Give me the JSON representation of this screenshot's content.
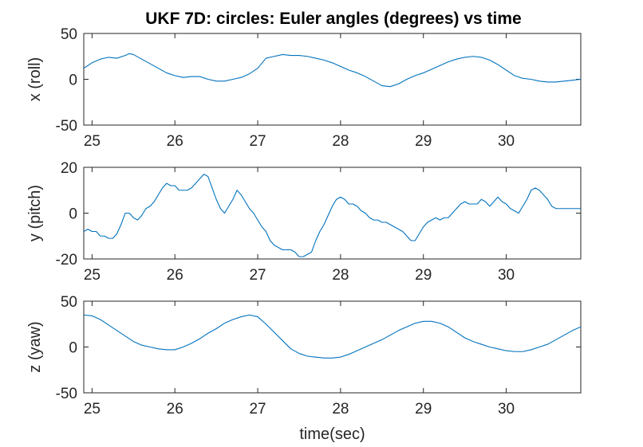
{
  "title": "UKF 7D: circles: Euler angles (degrees) vs time",
  "colors": {
    "series": "#0072BD",
    "axes": "#262626",
    "background": "#ffffff"
  },
  "chart_data": [
    {
      "type": "line",
      "ylabel": "x (roll)",
      "xlabel": "",
      "xlim": [
        24.9,
        30.9
      ],
      "ylim": [
        -50,
        50
      ],
      "xticks": [
        25,
        26,
        27,
        28,
        29,
        30
      ],
      "yticks": [
        -50,
        0,
        50
      ],
      "grid": false,
      "series": [
        {
          "x": [
            24.9,
            25.0,
            25.1,
            25.2,
            25.3,
            25.4,
            25.45,
            25.5,
            25.6,
            25.7,
            25.8,
            25.9,
            26.0,
            26.1,
            26.2,
            26.3,
            26.4,
            26.5,
            26.6,
            26.7,
            26.8,
            26.9,
            27.0,
            27.1,
            27.2,
            27.3,
            27.4,
            27.5,
            27.6,
            27.7,
            27.8,
            27.9,
            28.0,
            28.1,
            28.2,
            28.3,
            28.4,
            28.5,
            28.6,
            28.7,
            28.8,
            28.9,
            29.0,
            29.1,
            29.2,
            29.3,
            29.4,
            29.5,
            29.6,
            29.7,
            29.8,
            29.9,
            30.0,
            30.1,
            30.2,
            30.3,
            30.4,
            30.5,
            30.6,
            30.7,
            30.8,
            30.9
          ],
          "y": [
            12,
            18,
            22,
            24,
            23,
            26,
            28,
            27,
            22,
            17,
            12,
            7,
            4,
            2,
            3,
            3,
            0,
            -2,
            -2,
            0,
            2,
            6,
            12,
            23,
            25,
            27,
            26,
            26,
            25,
            23,
            21,
            18,
            14,
            10,
            7,
            3,
            -2,
            -7,
            -8,
            -5,
            0,
            4,
            7,
            11,
            15,
            19,
            22,
            24,
            25,
            24,
            21,
            16,
            10,
            4,
            1,
            0,
            -2,
            -3,
            -3,
            -2,
            -1,
            0
          ]
        }
      ]
    },
    {
      "type": "line",
      "ylabel": "y (pitch)",
      "xlabel": "",
      "xlim": [
        24.9,
        30.9
      ],
      "ylim": [
        -20,
        20
      ],
      "xticks": [
        25,
        26,
        27,
        28,
        29,
        30
      ],
      "yticks": [
        -20,
        0,
        20
      ],
      "grid": false,
      "series": [
        {
          "x": [
            24.9,
            24.95,
            25.0,
            25.05,
            25.1,
            25.15,
            25.2,
            25.25,
            25.3,
            25.35,
            25.4,
            25.45,
            25.5,
            25.55,
            25.6,
            25.65,
            25.7,
            25.75,
            25.8,
            25.85,
            25.9,
            25.95,
            26.0,
            26.05,
            26.1,
            26.15,
            26.2,
            26.25,
            26.3,
            26.35,
            26.4,
            26.45,
            26.5,
            26.55,
            26.6,
            26.65,
            26.7,
            26.75,
            26.8,
            26.85,
            26.9,
            26.95,
            27.0,
            27.05,
            27.1,
            27.15,
            27.2,
            27.25,
            27.3,
            27.35,
            27.4,
            27.45,
            27.5,
            27.55,
            27.6,
            27.65,
            27.7,
            27.75,
            27.8,
            27.85,
            27.9,
            27.95,
            28.0,
            28.05,
            28.1,
            28.15,
            28.2,
            28.25,
            28.3,
            28.35,
            28.4,
            28.45,
            28.5,
            28.55,
            28.6,
            28.65,
            28.7,
            28.75,
            28.8,
            28.85,
            28.9,
            28.95,
            29.0,
            29.05,
            29.1,
            29.15,
            29.2,
            29.25,
            29.3,
            29.35,
            29.4,
            29.45,
            29.5,
            29.55,
            29.6,
            29.65,
            29.7,
            29.75,
            29.8,
            29.85,
            29.9,
            29.95,
            30.0,
            30.05,
            30.1,
            30.15,
            30.2,
            30.25,
            30.3,
            30.35,
            30.4,
            30.45,
            30.5,
            30.55,
            30.6,
            30.65,
            30.7,
            30.75,
            30.8,
            30.85,
            30.9
          ],
          "y": [
            -8,
            -7,
            -8,
            -8,
            -10,
            -10,
            -11,
            -11,
            -9,
            -5,
            0,
            0,
            -2,
            -3,
            -1,
            2,
            3,
            5,
            8,
            11,
            13,
            12,
            12,
            10,
            10,
            10,
            11,
            13,
            15,
            17,
            16,
            11,
            6,
            2,
            0,
            3,
            6,
            10,
            8,
            5,
            2,
            0,
            -3,
            -6,
            -8,
            -12,
            -14,
            -15,
            -16,
            -16,
            -16,
            -17,
            -19,
            -19,
            -18,
            -17,
            -12,
            -8,
            -5,
            -1,
            3,
            6,
            7,
            6,
            4,
            4,
            3,
            1,
            0,
            -2,
            -3,
            -3,
            -4,
            -4,
            -5,
            -6,
            -7,
            -8,
            -10,
            -12,
            -12,
            -9,
            -6,
            -4,
            -3,
            -2,
            -3,
            -2,
            -2,
            0,
            2,
            4,
            5,
            4,
            4,
            4,
            6,
            5,
            3,
            5,
            7,
            5,
            4,
            2,
            1,
            0,
            3,
            6,
            10,
            11,
            10,
            8,
            6,
            3,
            2,
            2,
            2,
            2,
            2,
            2,
            2
          ]
        }
      ]
    },
    {
      "type": "line",
      "ylabel": "z (yaw)",
      "xlabel": "time(sec)",
      "xlim": [
        24.9,
        30.9
      ],
      "ylim": [
        -50,
        50
      ],
      "xticks": [
        25,
        26,
        27,
        28,
        29,
        30
      ],
      "yticks": [
        -50,
        0,
        50
      ],
      "grid": false,
      "series": [
        {
          "x": [
            24.9,
            25.0,
            25.1,
            25.2,
            25.3,
            25.4,
            25.5,
            25.6,
            25.7,
            25.8,
            25.9,
            26.0,
            26.1,
            26.2,
            26.3,
            26.4,
            26.5,
            26.6,
            26.7,
            26.8,
            26.9,
            27.0,
            27.1,
            27.2,
            27.3,
            27.4,
            27.5,
            27.6,
            27.7,
            27.8,
            27.9,
            28.0,
            28.1,
            28.2,
            28.3,
            28.4,
            28.5,
            28.6,
            28.7,
            28.8,
            28.9,
            29.0,
            29.1,
            29.2,
            29.3,
            29.4,
            29.5,
            29.6,
            29.7,
            29.8,
            29.9,
            30.0,
            30.1,
            30.2,
            30.3,
            30.4,
            30.5,
            30.6,
            30.7,
            30.8,
            30.9
          ],
          "y": [
            35,
            34,
            30,
            24,
            18,
            12,
            6,
            2,
            0,
            -2,
            -3,
            -3,
            0,
            4,
            9,
            15,
            20,
            26,
            30,
            33,
            35,
            33,
            25,
            16,
            7,
            -2,
            -7,
            -10,
            -11,
            -12,
            -12,
            -11,
            -8,
            -4,
            0,
            4,
            8,
            13,
            18,
            22,
            26,
            28,
            28,
            26,
            22,
            16,
            10,
            6,
            3,
            0,
            -2,
            -4,
            -5,
            -5,
            -3,
            0,
            3,
            8,
            13,
            18,
            22
          ]
        }
      ]
    }
  ]
}
